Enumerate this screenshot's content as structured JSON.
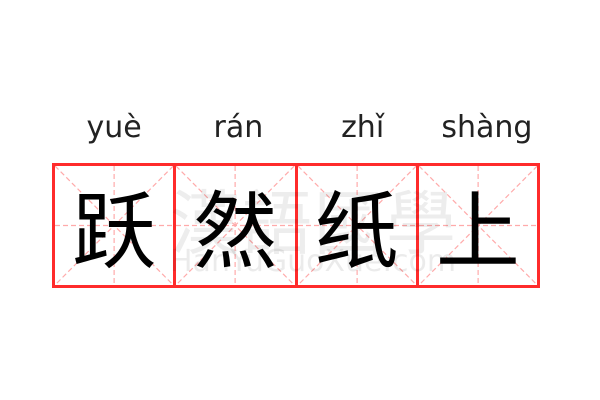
{
  "idiom": [
    {
      "pinyin": "yuè",
      "char": "跃"
    },
    {
      "pinyin": "rán",
      "char": "然"
    },
    {
      "pinyin": "zhǐ",
      "char": "纸"
    },
    {
      "pinyin": "shàng",
      "char": "上"
    }
  ],
  "watermark": {
    "chars": "漢語國學",
    "latin": "HanYuGuoXue.com"
  },
  "colors": {
    "border": "#ff2b2b",
    "guide": "#ffaaaa"
  }
}
